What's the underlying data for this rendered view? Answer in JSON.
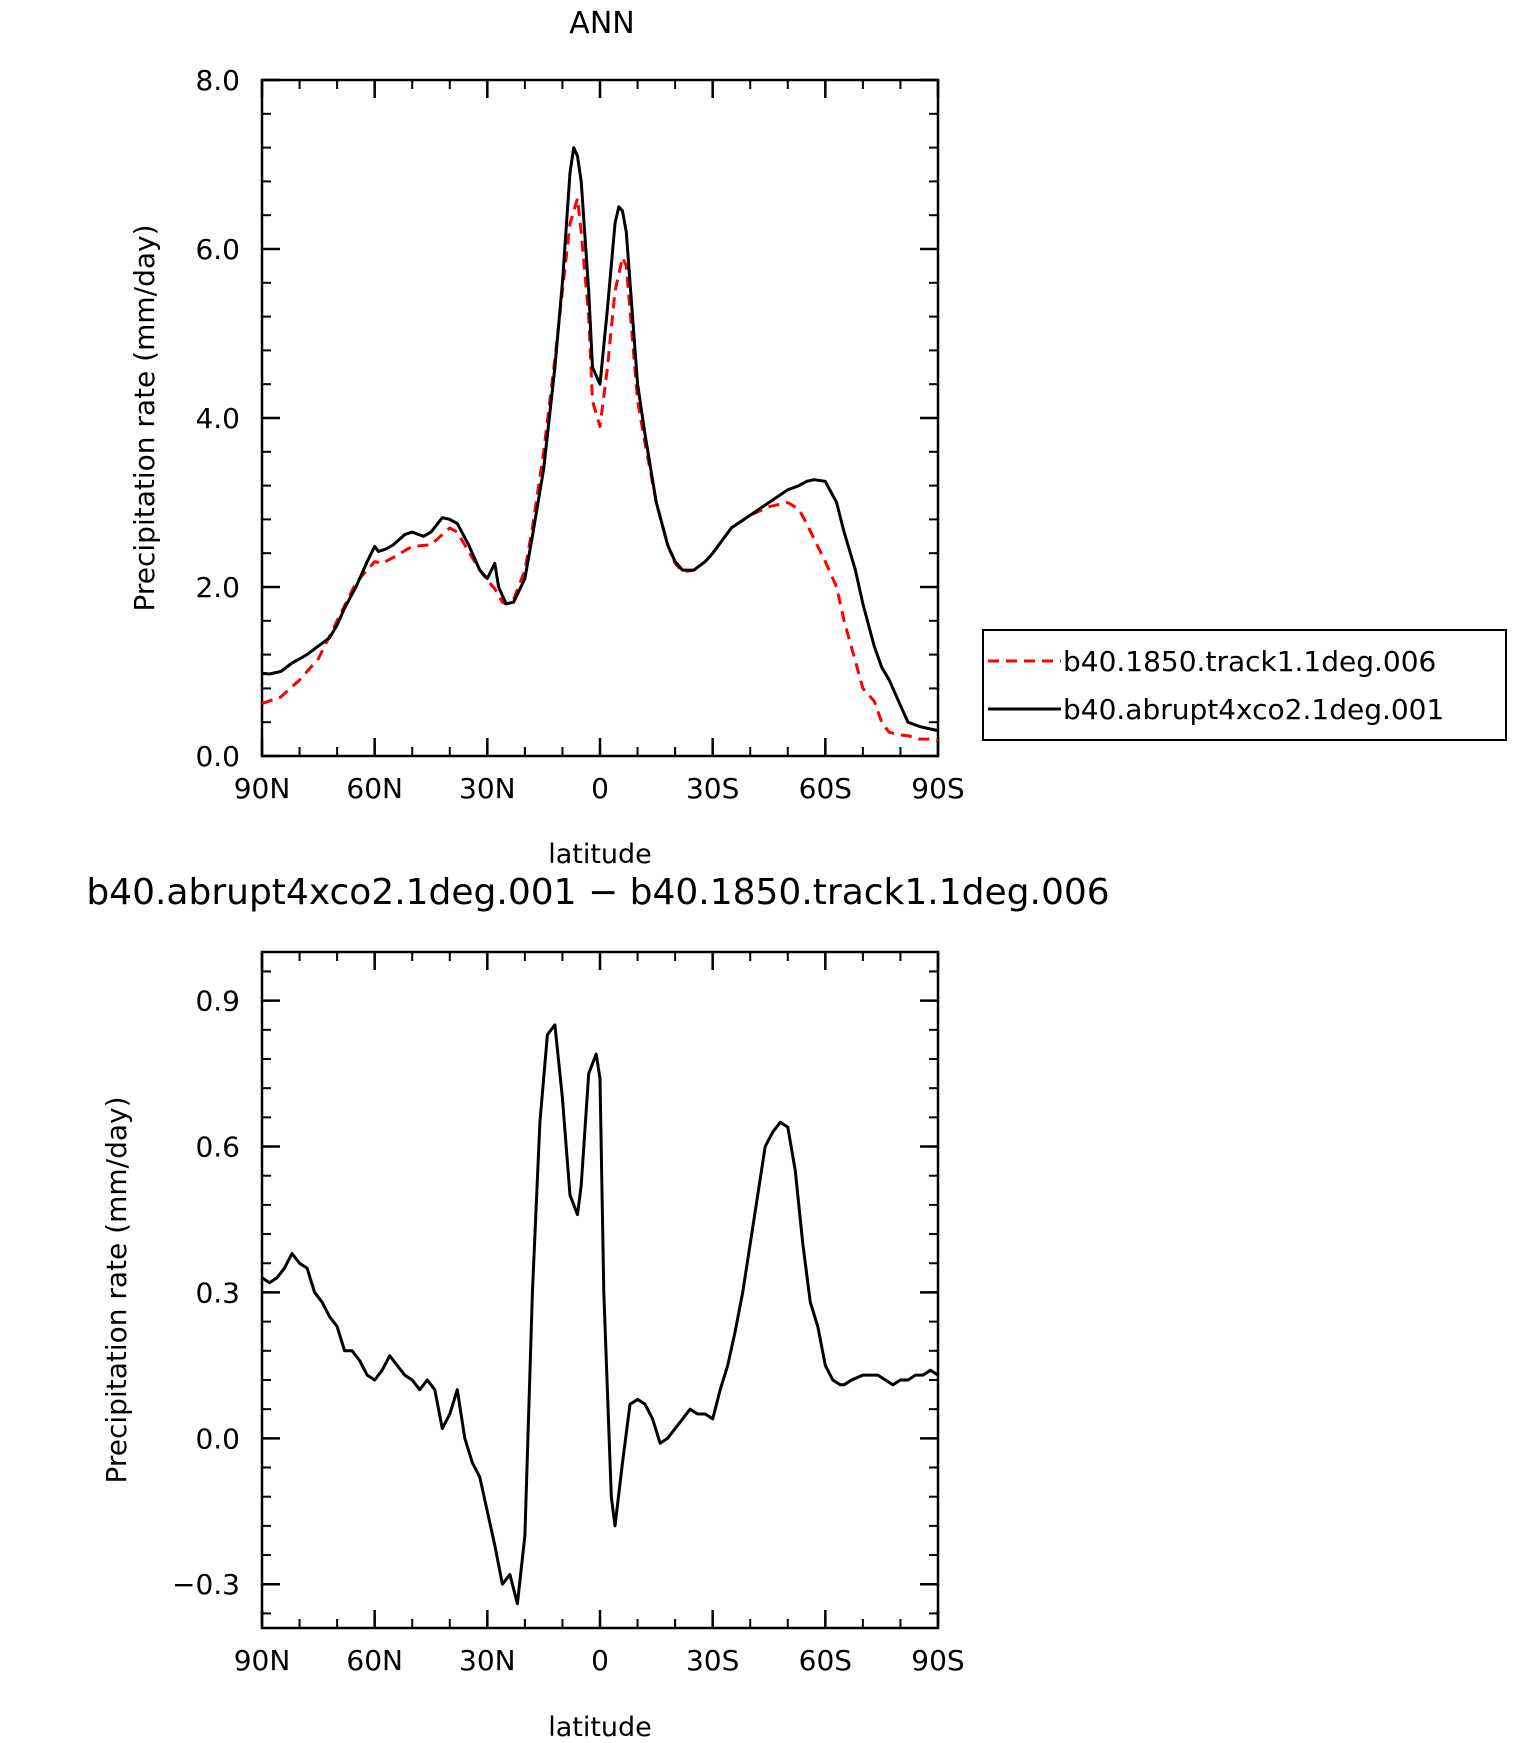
{
  "chart_data": [
    {
      "type": "line",
      "title": "ANN",
      "xlabel": "latitude",
      "ylabel": "Precipitation rate (mm/day)",
      "xlim": [
        90,
        -90
      ],
      "ylim": [
        0,
        8
      ],
      "x_ticks": [
        90,
        60,
        30,
        0,
        -30,
        -60,
        -90
      ],
      "x_tick_labels": [
        "90N",
        "60N",
        "30N",
        "0",
        "30S",
        "60S",
        "90S"
      ],
      "y_ticks": [
        0,
        2,
        4,
        6,
        8
      ],
      "y_tick_labels": [
        "0.0",
        "2.0",
        "4.0",
        "6.0",
        "8.0"
      ],
      "grid": false,
      "legend": "right",
      "series": [
        {
          "name": "b40.1850.track1.1deg.006",
          "color": "#ff0000",
          "dash": "dashed",
          "x": [
            90,
            85,
            80,
            75,
            70,
            65,
            60,
            58,
            55,
            50,
            45,
            42,
            40,
            38,
            35,
            32,
            30,
            28,
            26,
            25,
            23,
            20,
            18,
            15,
            12,
            10,
            8,
            6,
            5,
            3,
            2,
            0,
            -2,
            -4,
            -6,
            -7,
            -10,
            -12,
            -15,
            -18,
            -20,
            -22,
            -25,
            -28,
            -30,
            -35,
            -40,
            -45,
            -50,
            -53,
            -55,
            -60,
            -63,
            -65,
            -70,
            -73,
            -75,
            -77,
            -80,
            -82,
            -85,
            -88,
            -90
          ],
          "y": [
            0.62,
            0.7,
            0.9,
            1.15,
            1.6,
            2.05,
            2.3,
            2.28,
            2.35,
            2.48,
            2.5,
            2.62,
            2.7,
            2.65,
            2.42,
            2.2,
            2.08,
            1.98,
            1.82,
            1.8,
            1.85,
            2.2,
            2.7,
            3.6,
            4.7,
            5.5,
            6.3,
            6.6,
            6.2,
            5.2,
            4.2,
            3.9,
            4.6,
            5.5,
            5.9,
            5.8,
            4.2,
            3.7,
            3.0,
            2.5,
            2.28,
            2.18,
            2.2,
            2.3,
            2.4,
            2.7,
            2.85,
            2.95,
            3.0,
            2.92,
            2.75,
            2.3,
            2.0,
            1.6,
            0.8,
            0.65,
            0.4,
            0.28,
            0.25,
            0.24,
            0.2,
            0.2,
            0.18
          ]
        },
        {
          "name": "b40.abrupt4xco2.1deg.001",
          "color": "#000000",
          "dash": "solid",
          "x": [
            90,
            88,
            85,
            82,
            80,
            78,
            75,
            72,
            70,
            68,
            65,
            62,
            60,
            59,
            57,
            55,
            52,
            50,
            47,
            45,
            42,
            40,
            38,
            35,
            32,
            30,
            28,
            27,
            25,
            23,
            20,
            18,
            15,
            12,
            10,
            8,
            7,
            6,
            5,
            3,
            2,
            0,
            -2,
            -4,
            -5,
            -6,
            -7,
            -9,
            -10,
            -12,
            -15,
            -18,
            -20,
            -22,
            -25,
            -28,
            -30,
            -35,
            -40,
            -45,
            -50,
            -53,
            -55,
            -57,
            -60,
            -63,
            -65,
            -68,
            -70,
            -73,
            -75,
            -77,
            -80,
            -82,
            -85,
            -88,
            -90
          ],
          "y": [
            0.98,
            0.97,
            1.0,
            1.1,
            1.15,
            1.2,
            1.3,
            1.4,
            1.55,
            1.75,
            2.0,
            2.3,
            2.48,
            2.42,
            2.45,
            2.5,
            2.62,
            2.65,
            2.6,
            2.65,
            2.82,
            2.8,
            2.75,
            2.5,
            2.2,
            2.1,
            2.28,
            2.0,
            1.8,
            1.82,
            2.1,
            2.6,
            3.4,
            4.6,
            5.6,
            6.9,
            7.2,
            7.1,
            6.8,
            5.5,
            4.6,
            4.4,
            5.3,
            6.3,
            6.5,
            6.45,
            6.2,
            5.0,
            4.4,
            3.8,
            3.0,
            2.5,
            2.3,
            2.2,
            2.2,
            2.3,
            2.4,
            2.7,
            2.85,
            3.0,
            3.15,
            3.2,
            3.25,
            3.27,
            3.25,
            3.0,
            2.65,
            2.2,
            1.8,
            1.3,
            1.05,
            0.9,
            0.6,
            0.4,
            0.35,
            0.32,
            0.3
          ]
        }
      ]
    },
    {
      "type": "line",
      "title": "b40.abrupt4xco2.1deg.001 − b40.1850.track1.1deg.006",
      "xlabel": "latitude",
      "ylabel": "Precipitation rate (mm/day)",
      "xlim": [
        90,
        -90
      ],
      "ylim": [
        -0.39,
        1.0
      ],
      "x_ticks": [
        90,
        60,
        30,
        0,
        -30,
        -60,
        -90
      ],
      "x_tick_labels": [
        "90N",
        "60N",
        "30N",
        "0",
        "30S",
        "60S",
        "90S"
      ],
      "y_ticks": [
        -0.3,
        0,
        0.3,
        0.6,
        0.9
      ],
      "y_tick_labels": [
        "−0.3",
        "0.0",
        "0.3",
        "0.6",
        "0.9"
      ],
      "grid": false,
      "series": [
        {
          "color": "#000000",
          "dash": "solid",
          "x": [
            90,
            88,
            86,
            84,
            82,
            80,
            78,
            76,
            74,
            72,
            70,
            68,
            66,
            64,
            62,
            60,
            58,
            56,
            54,
            52,
            50,
            48,
            46,
            44,
            42,
            40,
            38,
            36,
            34,
            32,
            30,
            28,
            26,
            24,
            22,
            20,
            18,
            16,
            14,
            12,
            10,
            8,
            6,
            5,
            3,
            1,
            0,
            -1,
            -3,
            -4,
            -6,
            -8,
            -10,
            -12,
            -14,
            -16,
            -18,
            -20,
            -22,
            -24,
            -26,
            -28,
            -30,
            -32,
            -34,
            -36,
            -38,
            -40,
            -42,
            -44,
            -46,
            -48,
            -50,
            -52,
            -54,
            -56,
            -58,
            -60,
            -62,
            -64,
            -65,
            -67,
            -70,
            -72,
            -74,
            -76,
            -78,
            -80,
            -82,
            -84,
            -86,
            -88,
            -90
          ],
          "y": [
            0.33,
            0.32,
            0.33,
            0.35,
            0.38,
            0.36,
            0.35,
            0.3,
            0.28,
            0.25,
            0.23,
            0.18,
            0.18,
            0.16,
            0.13,
            0.12,
            0.14,
            0.17,
            0.15,
            0.13,
            0.12,
            0.1,
            0.12,
            0.1,
            0.02,
            0.05,
            0.1,
            0.0,
            -0.05,
            -0.08,
            -0.15,
            -0.22,
            -0.3,
            -0.28,
            -0.34,
            -0.2,
            0.3,
            0.65,
            0.83,
            0.85,
            0.7,
            0.5,
            0.46,
            0.52,
            0.75,
            0.79,
            0.74,
            0.3,
            -0.12,
            -0.18,
            -0.05,
            0.07,
            0.08,
            0.07,
            0.04,
            -0.01,
            0.0,
            0.02,
            0.04,
            0.06,
            0.05,
            0.05,
            0.04,
            0.1,
            0.15,
            0.22,
            0.3,
            0.4,
            0.5,
            0.6,
            0.63,
            0.65,
            0.64,
            0.55,
            0.4,
            0.28,
            0.23,
            0.15,
            0.12,
            0.11,
            0.11,
            0.12,
            0.13,
            0.13,
            0.13,
            0.12,
            0.11,
            0.12,
            0.12,
            0.13,
            0.13,
            0.14,
            0.13
          ]
        }
      ]
    }
  ]
}
